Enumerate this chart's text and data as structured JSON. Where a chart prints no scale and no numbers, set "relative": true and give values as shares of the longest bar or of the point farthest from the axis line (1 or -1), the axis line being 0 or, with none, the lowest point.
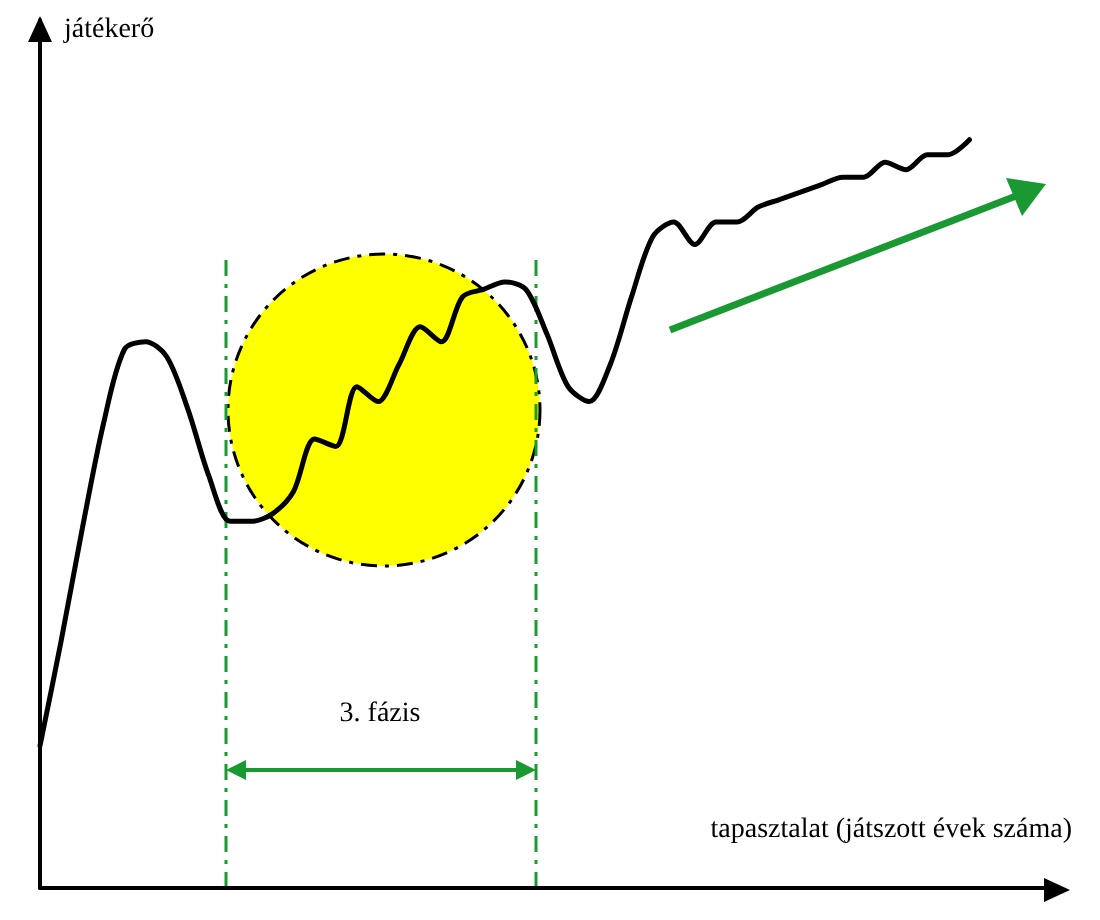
{
  "chart_data": {
    "type": "line",
    "relative": true,
    "xlabel": "tapasztalat (játszott évek száma)",
    "ylabel": "játékerő",
    "marker": "none",
    "line_style": "solid",
    "annotations": [
      "3. fázis"
    ],
    "categories": [
      null,
      null,
      null,
      null,
      null,
      null,
      null,
      null,
      null,
      null,
      null,
      null,
      null,
      null,
      null,
      null,
      null,
      null,
      null,
      null,
      null,
      null,
      null,
      null,
      null,
      null,
      null,
      null,
      null,
      null,
      null,
      null,
      null,
      null,
      null,
      null,
      null,
      null,
      null,
      null,
      null,
      null,
      null,
      null,
      null,
      null,
      null,
      null,
      null
    ],
    "series": [
      {
        "color": "#000000",
        "values": [
          0.19,
          0.33,
          0.48,
          0.62,
          0.72,
          0.73,
          0.71,
          0.64,
          0.55,
          0.49,
          0.49,
          0.5,
          0.53,
          0.6,
          0.59,
          0.67,
          0.65,
          0.7,
          0.75,
          0.73,
          0.79,
          0.8,
          0.81,
          0.8,
          0.74,
          0.67,
          0.65,
          0.7,
          0.79,
          0.87,
          0.89,
          0.86,
          0.89,
          0.89,
          0.91,
          0.92,
          0.93,
          0.94,
          0.95,
          0.95,
          0.97,
          0.96,
          0.98,
          0.98,
          1,
          null,
          null,
          null,
          null
        ]
      }
    ]
  }
}
